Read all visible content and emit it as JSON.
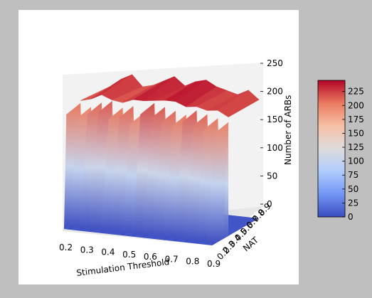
{
  "chart_data": {
    "type": "surface3d",
    "title": "",
    "xlabel": "Stimulation Threshold",
    "ylabel": "NAT",
    "zlabel": "Number of ARBs",
    "x_ticks": [
      "0.2",
      "0.3",
      "0.4",
      "0.5",
      "0.6",
      "0.7",
      "0.8",
      "0.9"
    ],
    "y_ticks": [
      "0.2",
      "0.3",
      "0.4",
      "0.5",
      "0.6",
      "0.7",
      "0.8",
      "0.9"
    ],
    "z_ticks": [
      "0",
      "50",
      "100",
      "150",
      "200",
      "250"
    ],
    "zlim": [
      0,
      250
    ],
    "x": [
      0.2,
      0.25,
      0.3,
      0.35,
      0.4,
      0.45,
      0.5,
      0.55,
      0.6,
      0.65,
      0.7,
      0.75,
      0.8,
      0.85,
      0.9
    ],
    "ridge_peaks_at_min_nat": [
      205,
      200,
      210,
      215,
      205,
      210,
      200,
      220,
      215,
      210,
      205,
      215,
      210,
      205,
      200
    ],
    "ridge_peaks_at_max_nat": [
      210,
      225,
      235,
      215,
      220,
      230,
      240,
      225,
      235,
      240,
      230,
      225,
      220,
      230,
      215
    ],
    "valley_value": 0,
    "colorbar": {
      "ticks": [
        "0",
        "25",
        "50",
        "75",
        "100",
        "125",
        "150",
        "175",
        "200",
        "225"
      ],
      "range": [
        0,
        245
      ],
      "colors": [
        "#3b4cc0",
        "#7396f5",
        "#b0cbfc",
        "#dddcdc",
        "#f6bfa6",
        "#ea7b60",
        "#b40426"
      ]
    }
  }
}
